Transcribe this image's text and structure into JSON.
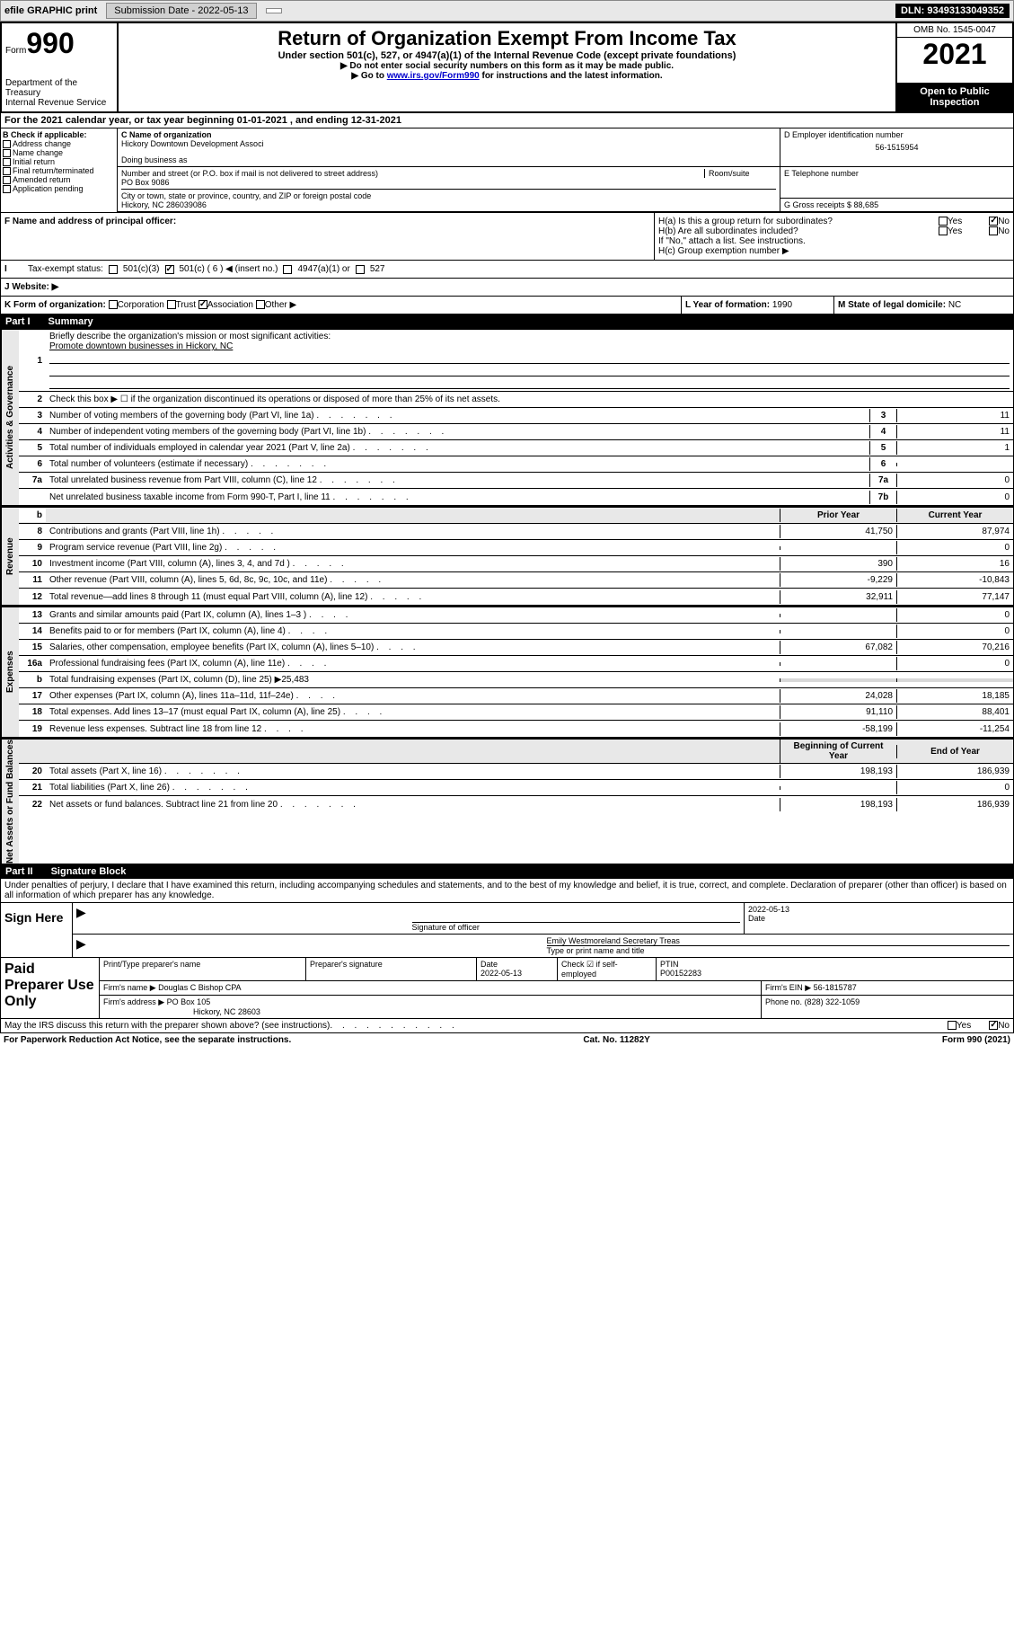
{
  "topbar": {
    "efile": "efile GRAPHIC print",
    "submission_label": "Submission Date - 2022-05-13",
    "dln": "DLN: 93493133049352"
  },
  "header": {
    "form_word": "Form",
    "form_num": "990",
    "dept": "Department of the Treasury",
    "irs": "Internal Revenue Service",
    "title": "Return of Organization Exempt From Income Tax",
    "sub": "Under section 501(c), 527, or 4947(a)(1) of the Internal Revenue Code (except private foundations)",
    "instr1": "▶ Do not enter social security numbers on this form as it may be made public.",
    "instr2_pre": "▶ Go to ",
    "instr2_link": "www.irs.gov/Form990",
    "instr2_post": " for instructions and the latest information.",
    "omb": "OMB No. 1545-0047",
    "year": "2021",
    "open_public": "Open to Public Inspection"
  },
  "taxyear": "For the 2021 calendar year, or tax year beginning 01-01-2021  , and ending 12-31-2021",
  "section_b": {
    "hdr": "B Check if applicable:",
    "items": [
      "Address change",
      "Name change",
      "Initial return",
      "Final return/terminated",
      "Amended return",
      "Application pending"
    ]
  },
  "section_c": {
    "name_lbl": "C Name of organization",
    "name_val": "Hickory Downtown Development Associ",
    "dba_lbl": "Doing business as",
    "addr_lbl": "Number and street (or P.O. box if mail is not delivered to street address)",
    "room_lbl": "Room/suite",
    "addr_val": "PO Box 9086",
    "city_lbl": "City or town, state or province, country, and ZIP or foreign postal code",
    "city_val": "Hickory, NC  286039086"
  },
  "section_d": {
    "lbl": "D Employer identification number",
    "val": "56-1515954"
  },
  "section_e": {
    "lbl": "E Telephone number",
    "val": ""
  },
  "section_g": {
    "lbl": "G Gross receipts $",
    "val": "88,685"
  },
  "section_f": {
    "lbl": "F  Name and address of principal officer:",
    "val": ""
  },
  "section_h": {
    "ha": "H(a)  Is this a group return for subordinates?",
    "hb": "H(b)  Are all subordinates included?",
    "hb_note": "If \"No,\" attach a list. See instructions.",
    "hc": "H(c)  Group exemption number ▶"
  },
  "section_i": {
    "lbl": "Tax-exempt status:",
    "opts": [
      "501(c)(3)",
      "501(c) ( 6 ) ◀ (insert no.)",
      "4947(a)(1) or",
      "527"
    ]
  },
  "section_j": {
    "lbl": "J  Website: ▶",
    "val": ""
  },
  "section_k": {
    "lbl": "K Form of organization:",
    "opts": [
      "Corporation",
      "Trust",
      "Association",
      "Other ▶"
    ],
    "year_lbl": "L Year of formation:",
    "year_val": "1990",
    "state_lbl": "M State of legal domicile:",
    "state_val": "NC"
  },
  "part1": {
    "label": "Part I",
    "title": "Summary"
  },
  "governance": {
    "vert": "Activities & Governance",
    "line1": "Briefly describe the organization's mission or most significant activities:",
    "mission": "Promote downtown businesses in Hickory, NC",
    "line2": "Check this box ▶ ☐  if the organization discontinued its operations or disposed of more than 25% of its net assets.",
    "rows": [
      {
        "n": "3",
        "t": "Number of voting members of the governing body (Part VI, line 1a)",
        "box": "3",
        "v": "11"
      },
      {
        "n": "4",
        "t": "Number of independent voting members of the governing body (Part VI, line 1b)",
        "box": "4",
        "v": "11"
      },
      {
        "n": "5",
        "t": "Total number of individuals employed in calendar year 2021 (Part V, line 2a)",
        "box": "5",
        "v": "1"
      },
      {
        "n": "6",
        "t": "Total number of volunteers (estimate if necessary)",
        "box": "6",
        "v": ""
      },
      {
        "n": "7a",
        "t": "Total unrelated business revenue from Part VIII, column (C), line 12",
        "box": "7a",
        "v": "0"
      },
      {
        "n": "",
        "t": "Net unrelated business taxable income from Form 990-T, Part I, line 11",
        "box": "7b",
        "v": "0"
      }
    ]
  },
  "colhdr": {
    "prior": "Prior Year",
    "current": "Current Year",
    "begin": "Beginning of Current Year",
    "end": "End of Year"
  },
  "revenue": {
    "vert": "Revenue",
    "rows": [
      {
        "n": "8",
        "t": "Contributions and grants (Part VIII, line 1h)",
        "p": "41,750",
        "c": "87,974"
      },
      {
        "n": "9",
        "t": "Program service revenue (Part VIII, line 2g)",
        "p": "",
        "c": "0"
      },
      {
        "n": "10",
        "t": "Investment income (Part VIII, column (A), lines 3, 4, and 7d )",
        "p": "390",
        "c": "16"
      },
      {
        "n": "11",
        "t": "Other revenue (Part VIII, column (A), lines 5, 6d, 8c, 9c, 10c, and 11e)",
        "p": "-9,229",
        "c": "-10,843"
      },
      {
        "n": "12",
        "t": "Total revenue—add lines 8 through 11 (must equal Part VIII, column (A), line 12)",
        "p": "32,911",
        "c": "77,147"
      }
    ]
  },
  "expenses": {
    "vert": "Expenses",
    "rows": [
      {
        "n": "13",
        "t": "Grants and similar amounts paid (Part IX, column (A), lines 1–3 )",
        "p": "",
        "c": "0"
      },
      {
        "n": "14",
        "t": "Benefits paid to or for members (Part IX, column (A), line 4)",
        "p": "",
        "c": "0"
      },
      {
        "n": "15",
        "t": "Salaries, other compensation, employee benefits (Part IX, column (A), lines 5–10)",
        "p": "67,082",
        "c": "70,216"
      },
      {
        "n": "16a",
        "t": "Professional fundraising fees (Part IX, column (A), line 11e)",
        "p": "",
        "c": "0"
      },
      {
        "n": "b",
        "t": "Total fundraising expenses (Part IX, column (D), line 25) ▶25,483",
        "gray": true
      },
      {
        "n": "17",
        "t": "Other expenses (Part IX, column (A), lines 11a–11d, 11f–24e)",
        "p": "24,028",
        "c": "18,185"
      },
      {
        "n": "18",
        "t": "Total expenses. Add lines 13–17 (must equal Part IX, column (A), line 25)",
        "p": "91,110",
        "c": "88,401"
      },
      {
        "n": "19",
        "t": "Revenue less expenses. Subtract line 18 from line 12",
        "p": "-58,199",
        "c": "-11,254"
      }
    ]
  },
  "netassets": {
    "vert": "Net Assets or Fund Balances",
    "rows": [
      {
        "n": "20",
        "t": "Total assets (Part X, line 16)",
        "p": "198,193",
        "c": "186,939"
      },
      {
        "n": "21",
        "t": "Total liabilities (Part X, line 26)",
        "p": "",
        "c": "0"
      },
      {
        "n": "22",
        "t": "Net assets or fund balances. Subtract line 21 from line 20",
        "p": "198,193",
        "c": "186,939"
      }
    ]
  },
  "part2": {
    "label": "Part II",
    "title": "Signature Block"
  },
  "sigintro": "Under penalties of perjury, I declare that I have examined this return, including accompanying schedules and statements, and to the best of my knowledge and belief, it is true, correct, and complete. Declaration of preparer (other than officer) is based on all information of which preparer has any knowledge.",
  "sign": {
    "left": "Sign Here",
    "sig_lbl": "Signature of officer",
    "date_lbl": "Date",
    "date_val": "2022-05-13",
    "name_val": "Emily Westmoreland  Secretary Treas",
    "name_lbl": "Type or print name and title"
  },
  "prep": {
    "left": "Paid Preparer Use Only",
    "h1": "Print/Type preparer's name",
    "h2": "Preparer's signature",
    "h3_lbl": "Date",
    "h3_val": "2022-05-13",
    "h4_lbl": "Check ☑ if self-employed",
    "h5_lbl": "PTIN",
    "h5_val": "P00152283",
    "firm_name_lbl": "Firm's name     ▶",
    "firm_name_val": "Douglas C Bishop CPA",
    "firm_ein_lbl": "Firm's EIN ▶",
    "firm_ein_val": "56-1815787",
    "firm_addr_lbl": "Firm's address ▶",
    "firm_addr_val1": "PO Box 105",
    "firm_addr_val2": "Hickory, NC  28603",
    "phone_lbl": "Phone no.",
    "phone_val": "(828) 322-1059"
  },
  "discuss": "May the IRS discuss this return with the preparer shown above? (see instructions)",
  "bottom": {
    "left": "For Paperwork Reduction Act Notice, see the separate instructions.",
    "mid": "Cat. No. 11282Y",
    "right": "Form 990 (2021)"
  },
  "yesno": {
    "yes": "Yes",
    "no": "No"
  }
}
